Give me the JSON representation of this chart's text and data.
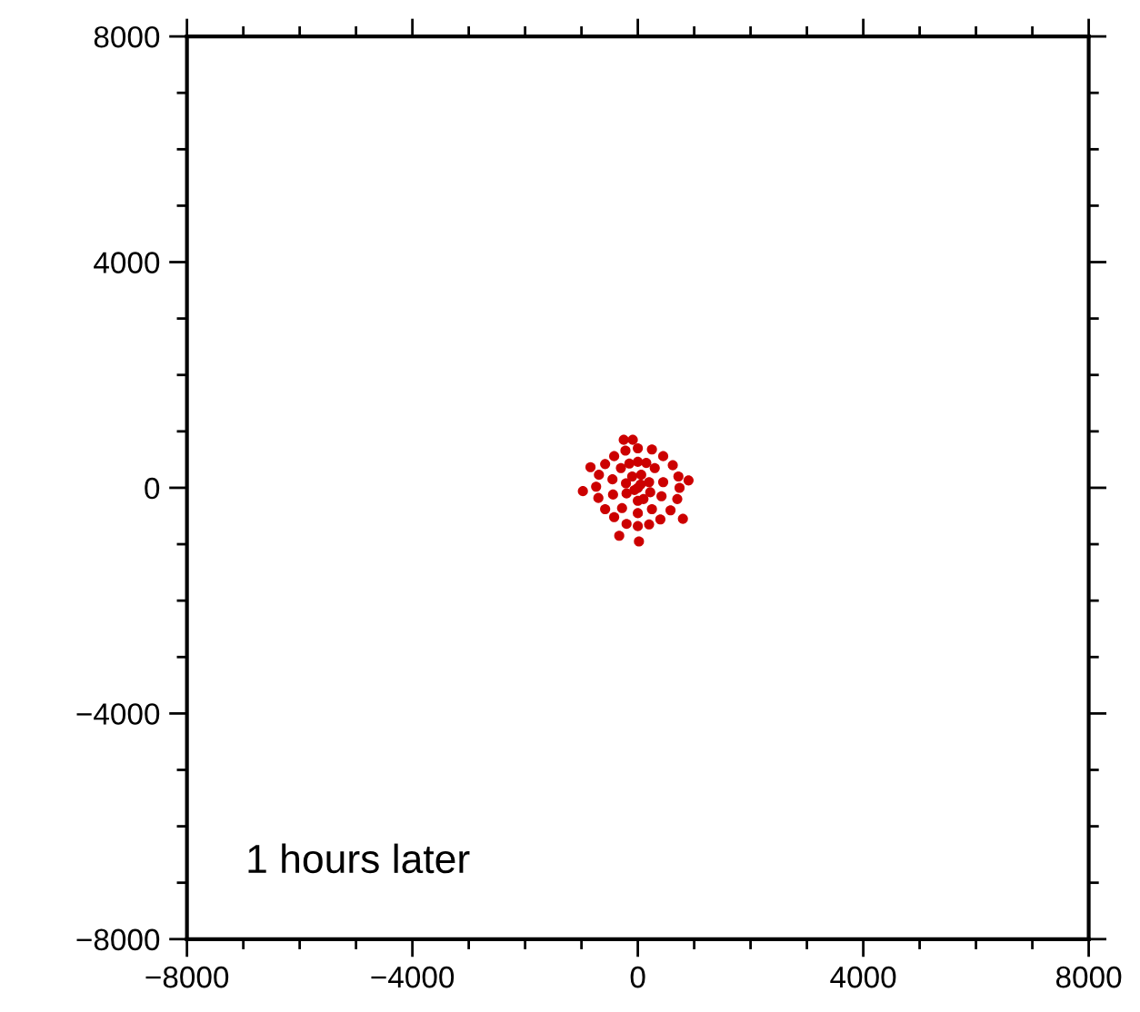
{
  "chart_data": {
    "type": "scatter",
    "annotations": [
      "1 hours later"
    ],
    "x": [
      0,
      250,
      450,
      620,
      720,
      740,
      700,
      580,
      400,
      200,
      0,
      -200,
      -420,
      -580,
      -700,
      -740,
      -690,
      -580,
      -420,
      -220,
      0,
      300,
      450,
      420,
      250,
      0,
      -280,
      -440,
      -450,
      -300,
      150,
      -150,
      200,
      100,
      -200,
      -100,
      220,
      -210,
      60,
      0,
      0,
      50,
      -60,
      -975,
      -840,
      -250,
      -90,
      900,
      800,
      -330,
      20
    ],
    "series": [
      {
        "color": "#cc0000",
        "values": [
          700,
          680,
          560,
          400,
          200,
          0,
          -200,
          -400,
          -560,
          -650,
          -680,
          -640,
          -520,
          -380,
          -180,
          20,
          230,
          420,
          560,
          660,
          460,
          350,
          100,
          -150,
          -380,
          -450,
          -360,
          -120,
          150,
          350,
          440,
          430,
          100,
          -200,
          -100,
          200,
          -80,
          80,
          230,
          -230,
          0,
          60,
          -40,
          -60,
          365,
          850,
          850,
          130,
          -550,
          -850,
          -950
        ]
      }
    ],
    "marker": "circle",
    "xlim": [
      -8000,
      8000
    ],
    "ylim": [
      -8000,
      8000
    ],
    "xticks": [
      -8000,
      -4000,
      0,
      4000,
      8000
    ],
    "yticks": [
      -8000,
      -4000,
      0,
      4000,
      8000
    ],
    "grid": false,
    "legend": false
  }
}
